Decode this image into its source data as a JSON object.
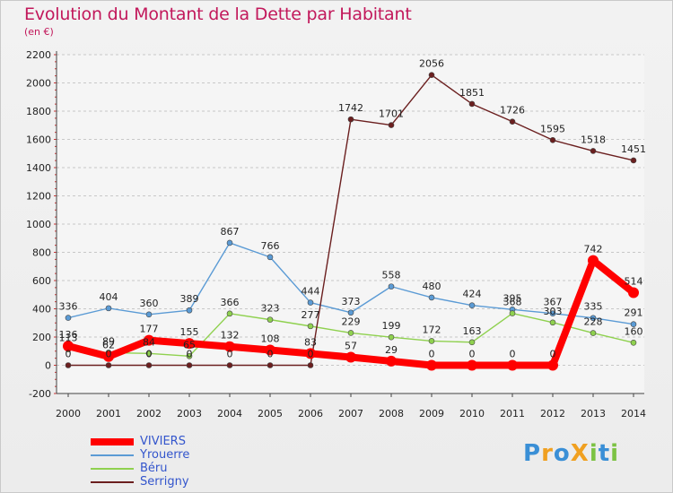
{
  "header": {
    "title": "Evolution du Montant de la Dette par Habitant",
    "subtitle": "(en €)"
  },
  "logo": {
    "text": "ProXiti"
  },
  "chart_data": {
    "type": "line",
    "title": "Evolution du Montant de la Dette par Habitant",
    "subtitle": "(en €)",
    "xlabel": "",
    "ylabel": "",
    "x": [
      2000,
      2001,
      2002,
      2003,
      2004,
      2005,
      2006,
      2007,
      2008,
      2009,
      2010,
      2011,
      2012,
      2013,
      2014
    ],
    "ylim": [
      -200,
      2200
    ],
    "yticks": [
      -200,
      0,
      200,
      400,
      600,
      800,
      1000,
      1200,
      1400,
      1600,
      1800,
      2000,
      2200
    ],
    "grid": "horizontal dashed",
    "legend": "bottom-left",
    "series": [
      {
        "name": "Yrouerre",
        "color": "#5b9bd5",
        "values": [
          336,
          404,
          360,
          389,
          867,
          766,
          444,
          373,
          558,
          480,
          424,
          395,
          367,
          335,
          291
        ]
      },
      {
        "name": "Béru",
        "color": "#8fd14f",
        "values": [
          113,
          89,
          84,
          65,
          366,
          323,
          277,
          229,
          199,
          172,
          163,
          368,
          303,
          228,
          160
        ]
      },
      {
        "name": "Serrigny",
        "color": "#6b1f1f",
        "values": [
          0,
          0,
          0,
          0,
          0,
          0,
          0,
          1742,
          1701,
          2056,
          1851,
          1726,
          1595,
          1518,
          1451
        ]
      },
      {
        "name": "VIVIERS",
        "color": "#ff0000",
        "values": [
          136,
          62,
          177,
          155,
          132,
          108,
          83,
          57,
          29,
          0,
          0,
          0,
          0,
          742,
          514
        ]
      }
    ]
  },
  "legend_order": [
    "VIVIERS",
    "Yrouerre",
    "Béru",
    "Serrigny"
  ]
}
